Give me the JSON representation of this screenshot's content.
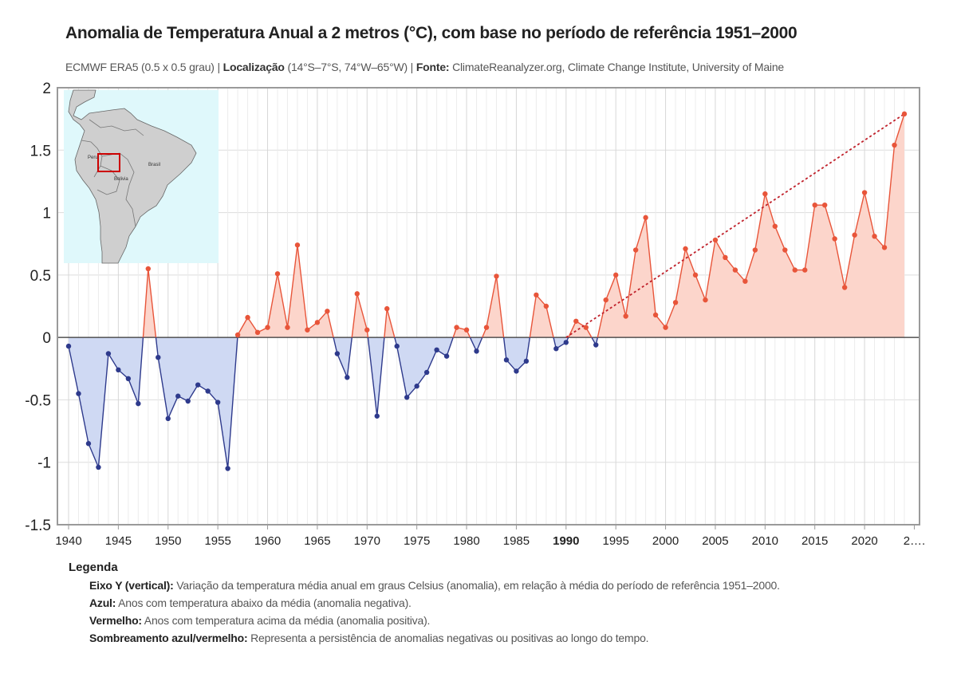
{
  "title": "Anomalia de Temperatura Anual a 2 metros (°C), com base no período de referência 1951–2000",
  "subtitle": {
    "dataset": "ECMWF ERA5 (0.5 x 0.5 grau)",
    "location_label": "Localização",
    "location_value": "(14°S–7°S, 74°W–65°W)",
    "source_label": "Fonte:",
    "source_value": "ClimateReanalyzer.org, Climate Change Institute, University of Maine"
  },
  "inset_map": {
    "labels": [
      "Peru",
      "Brasil",
      "Bolivia"
    ],
    "ocean_color": "#dff8fb",
    "land_color": "#cfcfcf",
    "highlight_color": "#cc0000"
  },
  "chart_data": {
    "type": "line",
    "title": "Anomalia de Temperatura Anual a 2 metros (°C), com base no período de referência 1951–2000",
    "xlabel": "",
    "ylabel": "",
    "ylim": [
      -1.5,
      2
    ],
    "xlim": [
      1940,
      2024
    ],
    "y_ticks": [
      "2",
      "1.5",
      "1",
      "0.5",
      "0",
      "-0.5",
      "-1",
      "-1.5"
    ],
    "x_ticks": [
      "1940",
      "1945",
      "1950",
      "1955",
      "1960",
      "1965",
      "1970",
      "1975",
      "1980",
      "1985",
      "1990",
      "1995",
      "2000",
      "2005",
      "2010",
      "2015",
      "2020",
      "2…."
    ],
    "x_tick_emphasis": "1990",
    "grid": true,
    "positive_color": "#e8553a",
    "negative_color": "#2e3a8c",
    "positive_fill": "#fcd5cb",
    "negative_fill": "#cfd9f3",
    "trend_color": "#c0202a",
    "series": [
      {
        "x": [
          1940,
          1941,
          1942,
          1943,
          1944,
          1945,
          1946,
          1947,
          1948,
          1949,
          1950,
          1951,
          1952,
          1953,
          1954,
          1955,
          1956,
          1957,
          1958,
          1959,
          1960,
          1961,
          1962,
          1963,
          1964,
          1965,
          1966,
          1967,
          1968,
          1969,
          1970,
          1971,
          1972,
          1973,
          1974,
          1975,
          1976,
          1977,
          1978,
          1979,
          1980,
          1981,
          1982,
          1983,
          1984,
          1985,
          1986,
          1987,
          1988,
          1989,
          1990,
          1991,
          1992,
          1993,
          1994,
          1995,
          1996,
          1997,
          1998,
          1999,
          2000,
          2001,
          2002,
          2003,
          2004,
          2005,
          2006,
          2007,
          2008,
          2009,
          2010,
          2011,
          2012,
          2013,
          2014,
          2015,
          2016,
          2017,
          2018,
          2019,
          2020,
          2021,
          2022,
          2023,
          2024
        ],
        "values": [
          -0.07,
          -0.45,
          -0.85,
          -1.04,
          -0.13,
          -0.26,
          -0.33,
          -0.53,
          0.55,
          -0.16,
          -0.65,
          -0.47,
          -0.51,
          -0.38,
          -0.43,
          -0.52,
          -1.05,
          0.02,
          0.16,
          0.04,
          0.08,
          0.51,
          0.08,
          0.74,
          0.06,
          0.12,
          0.21,
          -0.13,
          -0.32,
          0.35,
          0.06,
          -0.63,
          0.23,
          -0.07,
          -0.48,
          -0.39,
          -0.28,
          -0.1,
          -0.15,
          0.08,
          0.06,
          -0.11,
          0.08,
          0.49,
          -0.18,
          -0.27,
          -0.19,
          0.34,
          0.25,
          -0.09,
          -0.04,
          0.13,
          0.08,
          -0.06,
          0.3,
          0.5,
          0.17,
          0.7,
          0.96,
          0.18,
          0.08,
          0.28,
          0.71,
          0.5,
          0.3,
          0.78,
          0.64,
          0.54,
          0.45,
          0.7,
          1.15,
          0.89,
          0.7,
          0.54,
          0.54,
          1.06,
          1.06,
          0.79,
          0.4,
          0.82,
          1.16,
          0.81,
          0.72,
          1.54,
          1.79
        ]
      }
    ],
    "trend": {
      "from": [
        1990,
        0.0
      ],
      "to": [
        2024,
        1.79
      ]
    }
  },
  "legend": {
    "title": "Legenda",
    "rows": [
      {
        "label": "Eixo Y (vertical):",
        "text": " Variação da temperatura média anual em graus Celsius (anomalia), em relação à média do período de referência 1951–2000."
      },
      {
        "label": "Azul:",
        "text": "  Anos com temperatura abaixo da média (anomalia negativa)."
      },
      {
        "label": "Vermelho:",
        "text": "  Anos com temperatura acima da média (anomalia positiva)."
      },
      {
        "label": "Sombreamento azul/vermelho:",
        "text": " Representa a persistência de anomalias negativas ou positivas ao longo do tempo."
      }
    ]
  }
}
